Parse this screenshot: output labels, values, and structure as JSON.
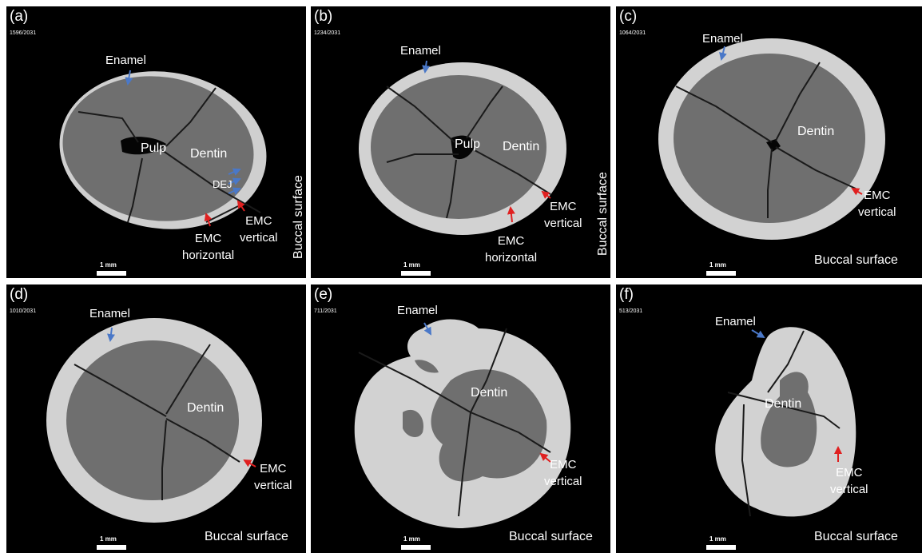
{
  "panels": [
    {
      "id": "a",
      "label": "(a)",
      "slice": "1596/2031",
      "enamel": "Enamel",
      "pulp": "Pulp",
      "dentin": "Dentin",
      "dej": "DEJ",
      "emc_vertical": "EMC\nvertical",
      "emc_horizontal": "EMC\nhorizontal",
      "buccal": "Buccal surface",
      "scale": "1 mm"
    },
    {
      "id": "b",
      "label": "(b)",
      "slice": "1234/2031",
      "enamel": "Enamel",
      "pulp": "Pulp",
      "dentin": "Dentin",
      "emc_vertical": "EMC\nvertical",
      "emc_horizontal": "EMC\nhorizontal",
      "buccal": "Buccal surface",
      "scale": "1 mm"
    },
    {
      "id": "c",
      "label": "(c)",
      "slice": "1064/2031",
      "enamel": "Enamel",
      "dentin": "Dentin",
      "emc_vertical": "EMC\nvertical",
      "buccal": "Buccal surface",
      "scale": "1 mm"
    },
    {
      "id": "d",
      "label": "(d)",
      "slice": "1010/2031",
      "enamel": "Enamel",
      "dentin": "Dentin",
      "emc_vertical": "EMC\nvertical",
      "buccal": "Buccal surface",
      "scale": "1 mm"
    },
    {
      "id": "e",
      "label": "(e)",
      "slice": "711/2031",
      "enamel": "Enamel",
      "dentin": "Dentin",
      "emc_vertical": "EMC\nvertical",
      "buccal": "Buccal surface",
      "scale": "1 mm"
    },
    {
      "id": "f",
      "label": "(f)",
      "slice": "513/2031",
      "enamel": "Enamel",
      "dentin": "Dentin",
      "emc_vertical": "EMC\nvertical",
      "buccal": "Buccal surface",
      "scale": "1 mm"
    }
  ],
  "colors": {
    "background": "#000000",
    "enamel": "#d2d2d2",
    "dentin": "#6f6f6f",
    "arrow_blue": "#4a78c8",
    "arrow_red": "#e02020",
    "crack": "#1a1a1a"
  }
}
